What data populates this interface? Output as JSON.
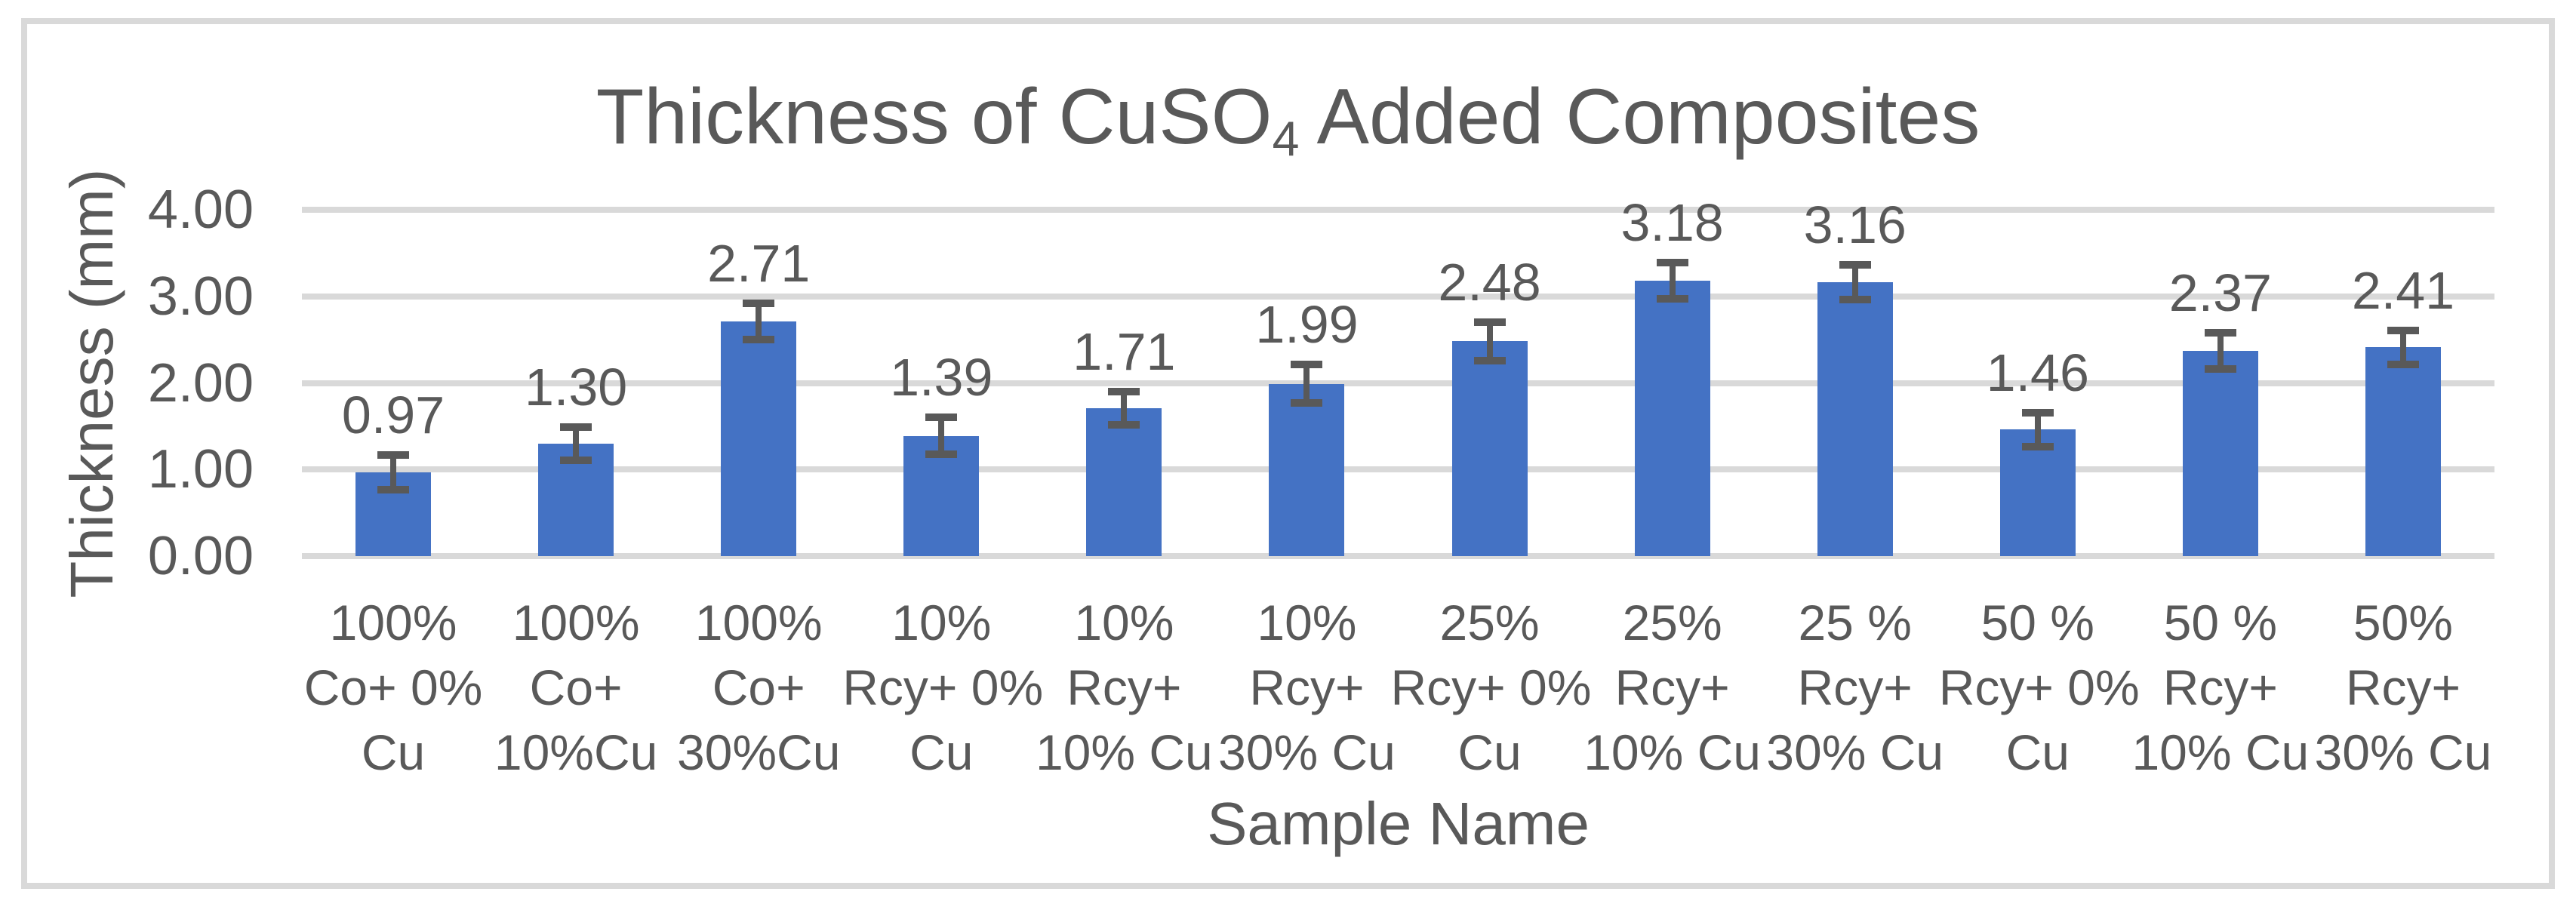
{
  "chart": {
    "title_prefix": "Thickness of CuSO",
    "title_subscript": "4",
    "title_suffix": " Added Composites",
    "y_axis_title": "Thickness (mm)",
    "x_axis_title": "Sample Name"
  },
  "chart_data": {
    "type": "bar",
    "title": "Thickness of CuSO4 Added Composites",
    "xlabel": "Sample Name",
    "ylabel": "Thickness (mm)",
    "ylim": [
      0,
      4
    ],
    "y_tick_labels": [
      "0.00",
      "1.00",
      "2.00",
      "3.00",
      "4.00"
    ],
    "grid": true,
    "legend": false,
    "bar_color": "#4472C4",
    "error_bar_color": "#595959",
    "gridline_color": "#D9D9D9",
    "text_color": "#595959",
    "frame_border_color": "#D9D9D9",
    "categories": [
      "100% Co+ 0% Cu",
      "100% Co+ 10%Cu",
      "100% Co+ 30%Cu",
      "10% Rcy+ 0% Cu",
      "10% Rcy+ 10% Cu",
      "10% Rcy+ 30% Cu",
      "25% Rcy+ 0% Cu",
      "25% Rcy+ 10% Cu",
      "25 % Rcy+ 30% Cu",
      "50 % Rcy+ 0% Cu",
      "50 % Rcy+ 10% Cu",
      "50% Rcy+ 30% Cu"
    ],
    "category_lines": [
      [
        "100%",
        "Co+ 0%",
        "Cu"
      ],
      [
        "100%",
        "Co+",
        "10%Cu"
      ],
      [
        "100%",
        "Co+",
        "30%Cu"
      ],
      [
        "10%",
        "Rcy+ 0%",
        "Cu"
      ],
      [
        "10%",
        "Rcy+",
        "10% Cu"
      ],
      [
        "10%",
        "Rcy+",
        "30% Cu"
      ],
      [
        "25%",
        "Rcy+ 0%",
        "Cu"
      ],
      [
        "25%",
        "Rcy+",
        "10% Cu"
      ],
      [
        "25 %",
        "Rcy+",
        "30% Cu"
      ],
      [
        "50 %",
        "Rcy+ 0%",
        "Cu"
      ],
      [
        "50 %",
        "Rcy+",
        "10% Cu"
      ],
      [
        "50%",
        "Rcy+",
        "30% Cu"
      ]
    ],
    "values": [
      0.97,
      1.3,
      2.71,
      1.39,
      1.71,
      1.99,
      2.48,
      3.18,
      3.16,
      1.46,
      2.37,
      2.41
    ],
    "data_labels": [
      "0.97",
      "1.30",
      "2.71",
      "1.39",
      "1.71",
      "1.99",
      "2.48",
      "3.18",
      "3.16",
      "1.46",
      "2.37",
      "2.41"
    ],
    "error_bars_approx": [
      0.2,
      0.19,
      0.21,
      0.21,
      0.19,
      0.22,
      0.22,
      0.21,
      0.2,
      0.2,
      0.21,
      0.2
    ]
  }
}
